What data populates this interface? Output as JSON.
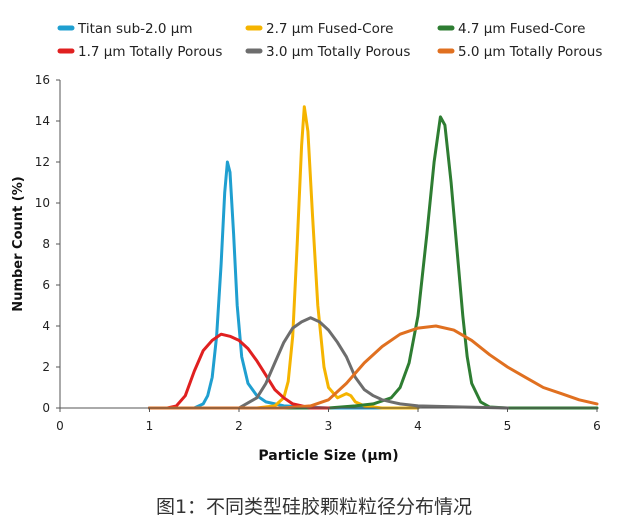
{
  "chart_data": {
    "type": "line",
    "xlabel": "Particle Size (µm)",
    "ylabel": "Number Count (%)",
    "xlim": [
      0,
      6
    ],
    "ylim": [
      0,
      16
    ],
    "xticks": [
      0,
      1,
      2,
      3,
      4,
      5,
      6
    ],
    "yticks": [
      0,
      2,
      4,
      6,
      8,
      10,
      12,
      14,
      16
    ],
    "grid": false,
    "legend_position": "top",
    "series": [
      {
        "name": "Titan sub-2.0 µm",
        "color": "#1f9fd0",
        "x": [
          1.0,
          1.5,
          1.6,
          1.65,
          1.7,
          1.75,
          1.8,
          1.84,
          1.87,
          1.9,
          1.94,
          1.98,
          2.03,
          2.1,
          2.2,
          2.3,
          2.5,
          3.0,
          4.0
        ],
        "y": [
          0,
          0,
          0.2,
          0.6,
          1.5,
          3.5,
          7.0,
          10.5,
          12.0,
          11.5,
          8.5,
          5.0,
          2.5,
          1.2,
          0.6,
          0.3,
          0.1,
          0,
          0
        ]
      },
      {
        "name": "2.7 µm Fused-Core",
        "color": "#f5b400",
        "x": [
          1.0,
          2.2,
          2.4,
          2.5,
          2.55,
          2.6,
          2.65,
          2.7,
          2.73,
          2.77,
          2.82,
          2.88,
          2.95,
          3.0,
          3.1,
          3.2,
          3.25,
          3.3,
          3.4,
          3.6,
          4.0
        ],
        "y": [
          0,
          0,
          0.1,
          0.5,
          1.3,
          3.5,
          8.0,
          12.8,
          14.7,
          13.5,
          9.5,
          5.0,
          2.0,
          1.0,
          0.5,
          0.7,
          0.6,
          0.3,
          0.1,
          0,
          0
        ]
      },
      {
        "name": "4.7 µm Fused-Core",
        "color": "#2e7d32",
        "x": [
          1.0,
          3.0,
          3.3,
          3.5,
          3.7,
          3.8,
          3.9,
          4.0,
          4.1,
          4.18,
          4.25,
          4.3,
          4.37,
          4.45,
          4.5,
          4.55,
          4.6,
          4.7,
          4.8,
          5.0,
          6.0
        ],
        "y": [
          0,
          0,
          0.1,
          0.2,
          0.5,
          1.0,
          2.2,
          4.5,
          8.5,
          12.0,
          14.2,
          13.8,
          11.0,
          7.0,
          4.5,
          2.5,
          1.2,
          0.3,
          0.05,
          0,
          0
        ]
      },
      {
        "name": "1.7 µm Totally Porous",
        "color": "#e02020",
        "x": [
          1.0,
          1.2,
          1.3,
          1.4,
          1.5,
          1.6,
          1.7,
          1.8,
          1.9,
          2.0,
          2.1,
          2.2,
          2.3,
          2.4,
          2.5,
          2.6,
          2.7,
          2.8,
          3.0
        ],
        "y": [
          0,
          0,
          0.1,
          0.6,
          1.8,
          2.8,
          3.3,
          3.6,
          3.5,
          3.3,
          2.9,
          2.3,
          1.6,
          0.9,
          0.5,
          0.2,
          0.1,
          0,
          0
        ]
      },
      {
        "name": "3.0 µm Totally Porous",
        "color": "#6d6d6d",
        "x": [
          1.0,
          2.0,
          2.2,
          2.3,
          2.4,
          2.5,
          2.6,
          2.7,
          2.8,
          2.9,
          3.0,
          3.1,
          3.2,
          3.3,
          3.4,
          3.5,
          3.6,
          3.7,
          3.8,
          4.0,
          4.5,
          5.0
        ],
        "y": [
          0,
          0,
          0.5,
          1.2,
          2.2,
          3.2,
          3.9,
          4.2,
          4.4,
          4.2,
          3.8,
          3.2,
          2.5,
          1.5,
          0.9,
          0.6,
          0.4,
          0.3,
          0.2,
          0.1,
          0.05,
          0
        ]
      },
      {
        "name": "5.0 µm Totally Porous",
        "color": "#e07020",
        "x": [
          1.0,
          2.5,
          2.8,
          3.0,
          3.2,
          3.4,
          3.6,
          3.8,
          4.0,
          4.2,
          4.4,
          4.6,
          4.8,
          5.0,
          5.2,
          5.4,
          5.6,
          5.8,
          6.0
        ],
        "y": [
          0,
          0,
          0.1,
          0.4,
          1.2,
          2.2,
          3.0,
          3.6,
          3.9,
          4.0,
          3.8,
          3.3,
          2.6,
          2.0,
          1.5,
          1.0,
          0.7,
          0.4,
          0.2
        ]
      }
    ]
  },
  "caption": "图1：不同类型硅胶颗粒粒径分布情况"
}
